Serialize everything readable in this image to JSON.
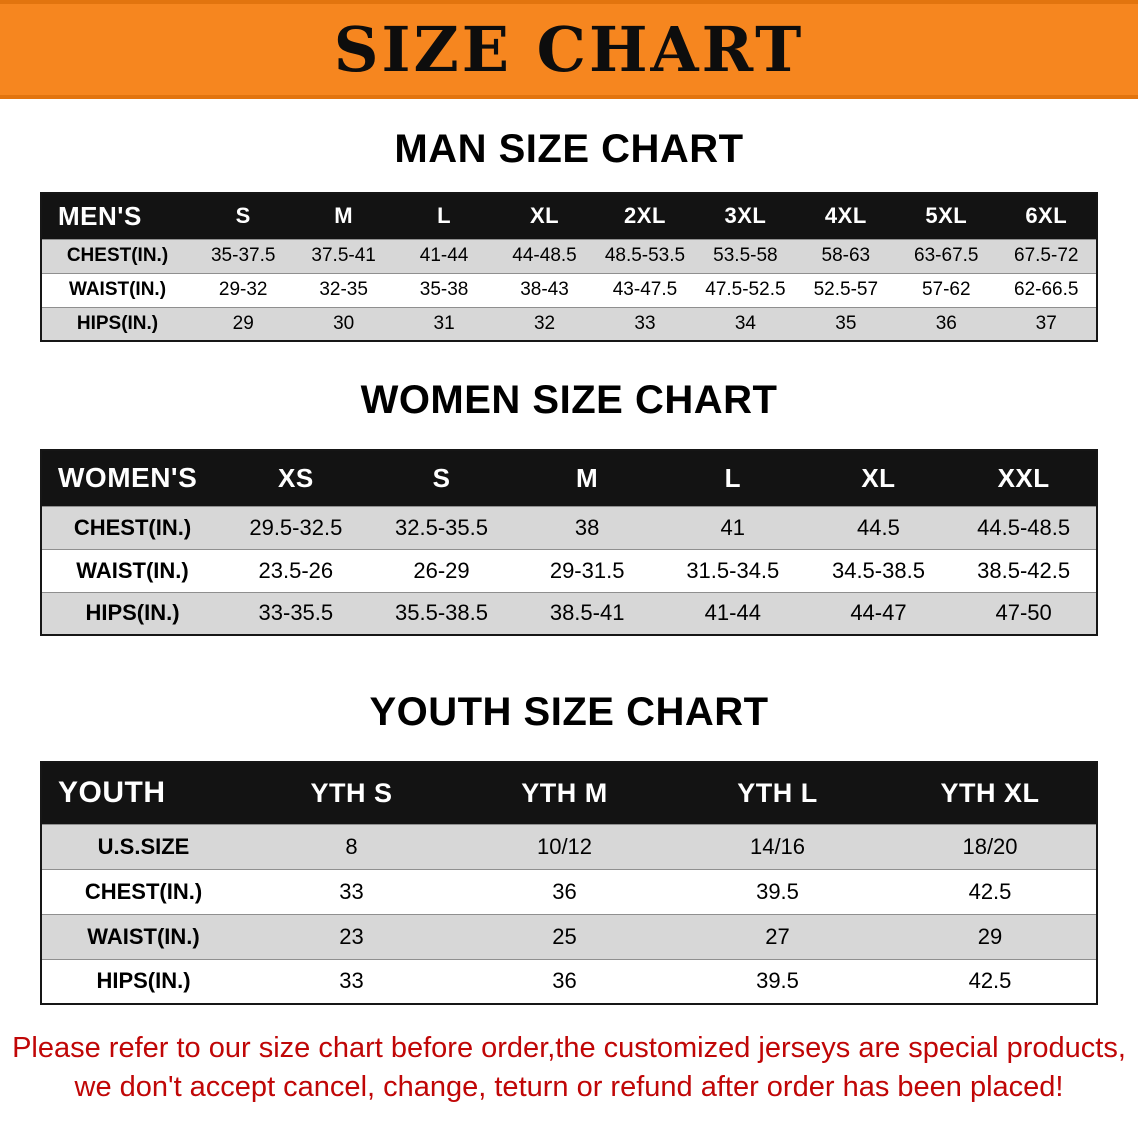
{
  "banner": {
    "title": "SIZE CHART"
  },
  "colors": {
    "banner_bg": "#f6861f",
    "header_bg": "#131313",
    "row_shade": "#d7d7d7",
    "footer_red": "#c00606"
  },
  "sections": [
    {
      "heading": "MAN SIZE CHART",
      "columns": [
        "MEN'S",
        "S",
        "M",
        "L",
        "XL",
        "2XL",
        "3XL",
        "4XL",
        "5XL",
        "6XL"
      ],
      "rows": [
        {
          "label": "CHEST(IN.)",
          "values": [
            "35-37.5",
            "37.5-41",
            "41-44",
            "44-48.5",
            "48.5-53.5",
            "53.5-58",
            "58-63",
            "63-67.5",
            "67.5-72"
          ]
        },
        {
          "label": "WAIST(IN.)",
          "values": [
            "29-32",
            "32-35",
            "35-38",
            "38-43",
            "43-47.5",
            "47.5-52.5",
            "52.5-57",
            "57-62",
            "62-66.5"
          ]
        },
        {
          "label": "HIPS(IN.)",
          "values": [
            "29",
            "30",
            "31",
            "32",
            "33",
            "34",
            "35",
            "36",
            "37"
          ]
        }
      ]
    },
    {
      "heading": "WOMEN SIZE CHART",
      "columns": [
        "WOMEN'S",
        "XS",
        "S",
        "M",
        "L",
        "XL",
        "XXL"
      ],
      "rows": [
        {
          "label": "CHEST(IN.)",
          "values": [
            "29.5-32.5",
            "32.5-35.5",
            "38",
            "41",
            "44.5",
            "44.5-48.5"
          ]
        },
        {
          "label": "WAIST(IN.)",
          "values": [
            "23.5-26",
            "26-29",
            "29-31.5",
            "31.5-34.5",
            "34.5-38.5",
            "38.5-42.5"
          ]
        },
        {
          "label": "HIPS(IN.)",
          "values": [
            "33-35.5",
            "35.5-38.5",
            "38.5-41",
            "41-44",
            "44-47",
            "47-50"
          ]
        }
      ]
    },
    {
      "heading": "YOUTH SIZE CHART",
      "columns": [
        "YOUTH",
        "YTH S",
        "YTH M",
        "YTH L",
        "YTH XL"
      ],
      "rows": [
        {
          "label": "U.S.SIZE",
          "values": [
            "8",
            "10/12",
            "14/16",
            "18/20"
          ]
        },
        {
          "label": "CHEST(IN.)",
          "values": [
            "33",
            "36",
            "39.5",
            "42.5"
          ]
        },
        {
          "label": "WAIST(IN.)",
          "values": [
            "23",
            "25",
            "27",
            "29"
          ]
        },
        {
          "label": "HIPS(IN.)",
          "values": [
            "33",
            "36",
            "39.5",
            "42.5"
          ]
        }
      ]
    }
  ],
  "footer": {
    "line1": "Please refer to our size chart before order,the customized jerseys are special products,",
    "line2": "we don't accept cancel, change, teturn or refund after order has been placed!"
  }
}
